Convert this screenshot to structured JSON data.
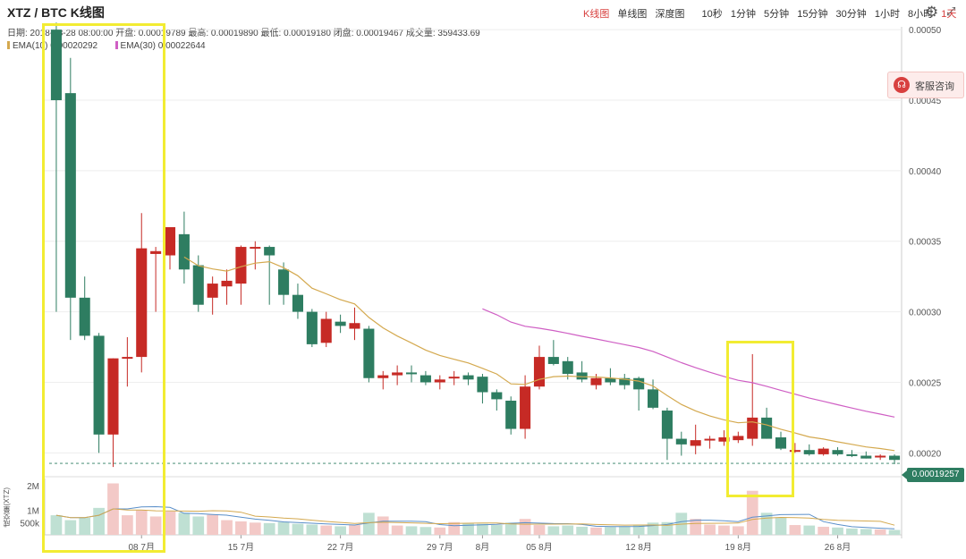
{
  "header": {
    "title": "XTZ / BTC K线图",
    "views": [
      {
        "label": "K线图",
        "active": true
      },
      {
        "label": "单线图",
        "active": false
      },
      {
        "label": "深度图",
        "active": false
      }
    ],
    "intervals": [
      {
        "label": "10秒",
        "active": false
      },
      {
        "label": "1分钟",
        "active": false
      },
      {
        "label": "5分钟",
        "active": false
      },
      {
        "label": "15分钟",
        "active": false
      },
      {
        "label": "30分钟",
        "active": false
      },
      {
        "label": "1小时",
        "active": false
      },
      {
        "label": "8小时",
        "active": false
      },
      {
        "label": "1天",
        "active": true
      }
    ],
    "icons": [
      "gear-icon",
      "expand-icon"
    ]
  },
  "info": {
    "ohlc": "日期: 2018-08-28 08:00:00  开盘: 0.00019789  最高: 0.00019890  最低: 0.00019180  闭盘: 0.00019467  成交量: 359433.69",
    "ema1": "EMA(10)  0.00020292",
    "ema2": "EMA(30)  0.00022644"
  },
  "service": {
    "label": "客服咨询",
    "icon": "headset-icon"
  },
  "price_tag": "0.00019257",
  "volume_axis_title": "成交量(XTZ)",
  "colors": {
    "up": "#c62a25",
    "down": "#2e7d61",
    "ema10": "#d4a94f",
    "ema30": "#cf5fc4",
    "highlight": "#f2ec32",
    "vol_ma1": "#5a8fc9",
    "vol_ma2": "#d4a94f"
  },
  "chart_data": {
    "type": "candlestick",
    "title": "XTZ / BTC K线图",
    "y_ticks": [
      "0.00050",
      "0.00045",
      "0.00040",
      "0.00035",
      "0.00030",
      "0.00025",
      "0.00020"
    ],
    "ylim": [
      0.000185,
      0.000502
    ],
    "x_ticks": [
      {
        "label": "08 7月",
        "index": 6
      },
      {
        "label": "15 7月",
        "index": 13
      },
      {
        "label": "22 7月",
        "index": 20
      },
      {
        "label": "29 7月",
        "index": 27
      },
      {
        "label": "8月",
        "index": 30
      },
      {
        "label": "05 8月",
        "index": 34
      },
      {
        "label": "12 8月",
        "index": 41
      },
      {
        "label": "19 8月",
        "index": 48
      },
      {
        "label": "26 8月",
        "index": 55
      }
    ],
    "volume_ticks": [
      {
        "label": "2M",
        "value": 2000000
      },
      {
        "label": "1M",
        "value": 1000000
      },
      {
        "label": "500k",
        "value": 500000
      }
    ],
    "candles": [
      {
        "o": 0.0005,
        "h": 0.000505,
        "l": 0.0003,
        "c": 0.00045,
        "v": 800000
      },
      {
        "o": 0.000455,
        "h": 0.00048,
        "l": 0.00028,
        "c": 0.00031,
        "v": 600000
      },
      {
        "o": 0.00031,
        "h": 0.000325,
        "l": 0.00028,
        "c": 0.000283,
        "v": 700000
      },
      {
        "o": 0.000283,
        "h": 0.000285,
        "l": 0.0002,
        "c": 0.000213,
        "v": 1100000
      },
      {
        "o": 0.000213,
        "h": 0.000267,
        "l": 0.00019,
        "c": 0.000267,
        "v": 2100000
      },
      {
        "o": 0.000267,
        "h": 0.000282,
        "l": 0.000247,
        "c": 0.000268,
        "v": 800000
      },
      {
        "o": 0.000268,
        "h": 0.00037,
        "l": 0.000257,
        "c": 0.000345,
        "v": 1000000
      },
      {
        "o": 0.000341,
        "h": 0.000346,
        "l": 0.0003,
        "c": 0.000343,
        "v": 750000
      },
      {
        "o": 0.00034,
        "h": 0.00036,
        "l": 0.00033,
        "c": 0.00036,
        "v": 950000
      },
      {
        "o": 0.000355,
        "h": 0.000371,
        "l": 0.00032,
        "c": 0.00033,
        "v": 900000
      },
      {
        "o": 0.000333,
        "h": 0.00034,
        "l": 0.0003,
        "c": 0.000305,
        "v": 750000
      },
      {
        "o": 0.00031,
        "h": 0.000325,
        "l": 0.000298,
        "c": 0.00032,
        "v": 820000
      },
      {
        "o": 0.000318,
        "h": 0.00033,
        "l": 0.000305,
        "c": 0.000322,
        "v": 600000
      },
      {
        "o": 0.00032,
        "h": 0.000347,
        "l": 0.000305,
        "c": 0.000346,
        "v": 550000
      },
      {
        "o": 0.000346,
        "h": 0.00035,
        "l": 0.00033,
        "c": 0.000346,
        "v": 500000
      },
      {
        "o": 0.000346,
        "h": 0.000347,
        "l": 0.000305,
        "c": 0.00034,
        "v": 480000
      },
      {
        "o": 0.00033,
        "h": 0.000335,
        "l": 0.000305,
        "c": 0.000312,
        "v": 520000
      },
      {
        "o": 0.000312,
        "h": 0.00032,
        "l": 0.000295,
        "c": 0.0003,
        "v": 450000
      },
      {
        "o": 0.0003,
        "h": 0.000302,
        "l": 0.000275,
        "c": 0.000277,
        "v": 420000
      },
      {
        "o": 0.000278,
        "h": 0.0003,
        "l": 0.000275,
        "c": 0.000295,
        "v": 380000
      },
      {
        "o": 0.000293,
        "h": 0.000298,
        "l": 0.000285,
        "c": 0.00029,
        "v": 350000
      },
      {
        "o": 0.000288,
        "h": 0.000303,
        "l": 0.00028,
        "c": 0.000292,
        "v": 400000
      },
      {
        "o": 0.000288,
        "h": 0.00029,
        "l": 0.00025,
        "c": 0.000253,
        "v": 900000
      },
      {
        "o": 0.000253,
        "h": 0.000258,
        "l": 0.000245,
        "c": 0.000255,
        "v": 750000
      },
      {
        "o": 0.000255,
        "h": 0.000262,
        "l": 0.000248,
        "c": 0.000257,
        "v": 380000
      },
      {
        "o": 0.000257,
        "h": 0.000262,
        "l": 0.00025,
        "c": 0.000256,
        "v": 350000
      },
      {
        "o": 0.000255,
        "h": 0.000258,
        "l": 0.000248,
        "c": 0.00025,
        "v": 320000
      },
      {
        "o": 0.00025,
        "h": 0.000255,
        "l": 0.000245,
        "c": 0.000252,
        "v": 300000
      },
      {
        "o": 0.000253,
        "h": 0.000258,
        "l": 0.000248,
        "c": 0.000254,
        "v": 520000
      },
      {
        "o": 0.000255,
        "h": 0.000257,
        "l": 0.000248,
        "c": 0.000252,
        "v": 480000
      },
      {
        "o": 0.000254,
        "h": 0.000256,
        "l": 0.000235,
        "c": 0.000243,
        "v": 450000
      },
      {
        "o": 0.000243,
        "h": 0.000245,
        "l": 0.00023,
        "c": 0.000238,
        "v": 400000
      },
      {
        "o": 0.000237,
        "h": 0.00024,
        "l": 0.000213,
        "c": 0.000217,
        "v": 500000
      },
      {
        "o": 0.000217,
        "h": 0.000255,
        "l": 0.00021,
        "c": 0.000247,
        "v": 650000
      },
      {
        "o": 0.000247,
        "h": 0.000276,
        "l": 0.000245,
        "c": 0.000268,
        "v": 400000
      },
      {
        "o": 0.000268,
        "h": 0.00028,
        "l": 0.000262,
        "c": 0.000263,
        "v": 350000
      },
      {
        "o": 0.000265,
        "h": 0.000268,
        "l": 0.000252,
        "c": 0.000256,
        "v": 380000
      },
      {
        "o": 0.000257,
        "h": 0.000265,
        "l": 0.00025,
        "c": 0.000252,
        "v": 330000
      },
      {
        "o": 0.000248,
        "h": 0.000256,
        "l": 0.000245,
        "c": 0.000253,
        "v": 300000
      },
      {
        "o": 0.000253,
        "h": 0.00026,
        "l": 0.000248,
        "c": 0.00025,
        "v": 320000
      },
      {
        "o": 0.000253,
        "h": 0.000256,
        "l": 0.000245,
        "c": 0.000248,
        "v": 350000
      },
      {
        "o": 0.000253,
        "h": 0.000254,
        "l": 0.00023,
        "c": 0.000245,
        "v": 420000
      },
      {
        "o": 0.000245,
        "h": 0.000252,
        "l": 0.000231,
        "c": 0.000232,
        "v": 500000
      },
      {
        "o": 0.00023,
        "h": 0.000232,
        "l": 0.000195,
        "c": 0.00021,
        "v": 520000
      },
      {
        "o": 0.00021,
        "h": 0.000215,
        "l": 0.000198,
        "c": 0.000206,
        "v": 900000
      },
      {
        "o": 0.000205,
        "h": 0.00022,
        "l": 0.000199,
        "c": 0.000209,
        "v": 650000
      },
      {
        "o": 0.000209,
        "h": 0.000212,
        "l": 0.000203,
        "c": 0.00021,
        "v": 420000
      },
      {
        "o": 0.000208,
        "h": 0.000216,
        "l": 0.000205,
        "c": 0.000211,
        "v": 380000
      },
      {
        "o": 0.000209,
        "h": 0.000215,
        "l": 0.000207,
        "c": 0.000212,
        "v": 350000
      },
      {
        "o": 0.00021,
        "h": 0.00027,
        "l": 0.000205,
        "c": 0.000225,
        "v": 1800000
      },
      {
        "o": 0.000225,
        "h": 0.000232,
        "l": 0.00021,
        "c": 0.00021,
        "v": 900000
      },
      {
        "o": 0.000211,
        "h": 0.000215,
        "l": 0.000202,
        "c": 0.000203,
        "v": 700000
      },
      {
        "o": 0.000202,
        "h": 0.000207,
        "l": 0.0002,
        "c": 0.000202,
        "v": 400000
      },
      {
        "o": 0.000202,
        "h": 0.000206,
        "l": 0.000198,
        "c": 0.000199,
        "v": 380000
      },
      {
        "o": 0.000199,
        "h": 0.000204,
        "l": 0.000198,
        "c": 0.000203,
        "v": 330000
      },
      {
        "o": 0.000202,
        "h": 0.000204,
        "l": 0.000198,
        "c": 0.000199,
        "v": 300000
      },
      {
        "o": 0.000199,
        "h": 0.000202,
        "l": 0.000197,
        "c": 0.000198,
        "v": 260000
      },
      {
        "o": 0.000198,
        "h": 0.000201,
        "l": 0.000196,
        "c": 0.000196,
        "v": 240000
      },
      {
        "o": 0.000197,
        "h": 0.000199,
        "l": 0.000195,
        "c": 0.000198,
        "v": 220000
      },
      {
        "o": 0.000198,
        "h": 0.000199,
        "l": 0.000192,
        "c": 0.000195,
        "v": 200000
      }
    ],
    "ema10_start": 9,
    "ema30_start": 30,
    "series": [
      {
        "name": "EMA(10)",
        "last": 0.00020292
      },
      {
        "name": "EMA(30)",
        "last": 0.00022644
      }
    ]
  }
}
